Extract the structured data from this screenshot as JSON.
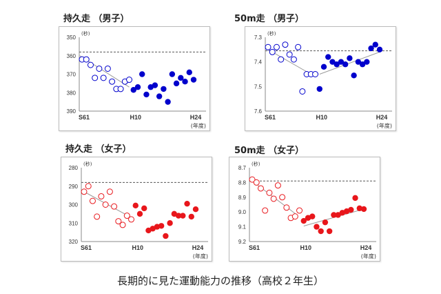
{
  "caption": "長期的に見た運動能力の推移（高校２年生）",
  "chart_data": [
    {
      "type": "scatter",
      "title": "持久走 （男子）",
      "ylabel": "(秒)",
      "xlabel": "(年度)",
      "y_inverted": true,
      "ylim": [
        350,
        390
      ],
      "yticks": [
        "350",
        "360",
        "370",
        "380",
        "390"
      ],
      "xticks": [
        {
          "x": 1986,
          "label": "S61"
        },
        {
          "x": 1998,
          "label": "H10"
        },
        {
          "x": 2012,
          "label": "H24"
        }
      ],
      "reference_dashed": 358,
      "color": "#0000cc",
      "open_start": 1986,
      "open_values": [
        362,
        362,
        365,
        372,
        367,
        372,
        367,
        374,
        378,
        378,
        374,
        373
      ],
      "filled_start": 1998,
      "filled_values": [
        378.5,
        377,
        370,
        381,
        377,
        376,
        382,
        378,
        385,
        370,
        375,
        372,
        374,
        369,
        373
      ],
      "trend_lines": [
        [
          [
            1985.5,
            360
          ],
          [
            1997,
            377
          ]
        ]
      ]
    },
    {
      "type": "scatter",
      "title": "50m走 （男子）",
      "ylabel": "(秒)",
      "xlabel": "(年度)",
      "y_inverted": true,
      "ylim": [
        7.3,
        7.6
      ],
      "yticks": [
        "7.3",
        "7.4",
        "7.5",
        "7.6"
      ],
      "xticks": [
        {
          "x": 1986,
          "label": "S61"
        },
        {
          "x": 1998,
          "label": "H10"
        },
        {
          "x": 2012,
          "label": "H24"
        }
      ],
      "reference_dashed": 7.355,
      "color": "#0000cc",
      "open_start": 1986,
      "open_values": [
        7.34,
        7.36,
        7.34,
        7.39,
        7.33,
        7.37,
        7.39,
        7.34,
        7.52,
        7.45,
        7.45,
        7.45
      ],
      "filled_start": 1998,
      "filled_values": [
        7.51,
        7.42,
        7.38,
        7.4,
        7.41,
        7.4,
        7.41,
        7.385,
        7.455,
        7.4,
        7.41,
        7.4,
        7.345,
        7.33,
        7.35
      ],
      "trend_lines": [
        [
          [
            1986,
            7.35
          ],
          [
            1996,
            7.45
          ]
        ],
        [
          [
            1998,
            7.45
          ],
          [
            2012,
            7.36
          ]
        ]
      ]
    },
    {
      "type": "scatter",
      "title": "持久走 （女子）",
      "ylabel": "(秒)",
      "xlabel": "(年度)",
      "y_inverted": true,
      "ylim": [
        280,
        320
      ],
      "yticks": [
        "280",
        "290",
        "300",
        "310",
        "320"
      ],
      "xticks": [
        {
          "x": 1986,
          "label": "S61"
        },
        {
          "x": 1998,
          "label": "H10"
        },
        {
          "x": 2012,
          "label": "H24"
        }
      ],
      "reference_dashed": 288,
      "color": "#e8161b",
      "open_start": 1986,
      "open_values": [
        293,
        290,
        298,
        306.5,
        295.5,
        300,
        293,
        301,
        309,
        311,
        306,
        308
      ],
      "filled_start": 1998,
      "filled_values": [
        300.5,
        305,
        302,
        314,
        313,
        312,
        311.5,
        317,
        310,
        305,
        306,
        306,
        299.5,
        306.5,
        302.5
      ],
      "trend_lines": [
        [
          [
            1986,
            293
          ],
          [
            1997,
            307
          ]
        ]
      ]
    },
    {
      "type": "scatter",
      "title": "50m走 （女子）",
      "ylabel": "(秒)",
      "xlabel": "(年度)",
      "y_inverted": true,
      "ylim": [
        8.7,
        9.2
      ],
      "yticks": [
        "8.7",
        "8.8",
        "8.9",
        "9.0",
        "9.1",
        "9.2"
      ],
      "xticks": [
        {
          "x": 1986,
          "label": "S61"
        },
        {
          "x": 1998,
          "label": "H10"
        },
        {
          "x": 2012,
          "label": "H24"
        }
      ],
      "reference_dashed": 8.79,
      "color": "#e8161b",
      "open_start": 1986,
      "open_values": [
        8.78,
        8.8,
        8.84,
        8.99,
        8.87,
        8.91,
        8.82,
        8.9,
        8.97,
        9.04,
        9.03,
        8.99
      ],
      "filled_start": 1998,
      "filled_values": [
        9.06,
        9.04,
        9.03,
        9.1,
        9.13,
        9.07,
        9.13,
        9.02,
        9.02,
        9.005,
        8.995,
        8.985,
        8.905,
        8.975,
        8.98
      ],
      "trend_lines": [
        [
          [
            1986,
            8.79
          ],
          [
            1996,
            9.01
          ]
        ],
        [
          [
            1998,
            9.095
          ],
          [
            2012,
            8.98
          ]
        ]
      ]
    }
  ]
}
